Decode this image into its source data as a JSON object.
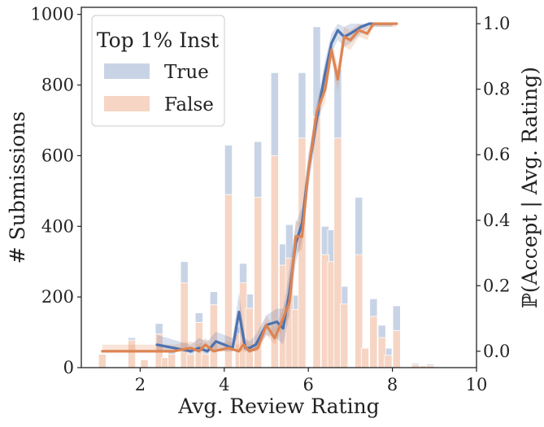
{
  "chart_data": {
    "type": "bar+line",
    "title": "",
    "xlabel": "Avg. Review Rating",
    "ylabel_left": "# Submissions",
    "ylabel_right": "ℙ(Accept | Avg. Rating)",
    "xlim": [
      0.6,
      10.0
    ],
    "ylim_left": [
      0,
      1020
    ],
    "ylim_right": [
      -0.05,
      1.05
    ],
    "x_ticks": [
      2,
      4,
      6,
      8,
      10
    ],
    "y_left_ticks": [
      0,
      200,
      400,
      600,
      800,
      1000
    ],
    "y_right_ticks": [
      0.0,
      0.2,
      0.4,
      0.6,
      0.8,
      1.0
    ],
    "x_tick_labels": [
      "2",
      "4",
      "6",
      "8",
      "10"
    ],
    "y_left_tick_labels": [
      "0",
      "200",
      "400",
      "600",
      "800",
      "1000"
    ],
    "y_right_tick_labels": [
      "0.0",
      "0.2",
      "0.4",
      "0.6",
      "0.8",
      "1.0"
    ],
    "legend": {
      "title": "Top 1% Inst",
      "placement": "top-left",
      "entries": [
        {
          "label": "True",
          "color": "#c8d4e6"
        },
        {
          "label": "False",
          "color": "#f6d5c4"
        }
      ]
    },
    "colors": {
      "true_bar": "#c8d4e6",
      "false_bar": "#f6d5c4",
      "true_line": "#4c72b0",
      "false_line": "#dd8452",
      "true_band": "#4c72b0",
      "false_band": "#dd8452"
    },
    "histogram": {
      "bin_width": 0.18,
      "bins": [
        {
          "x": 1.1,
          "total": 38,
          "false": 38
        },
        {
          "x": 1.8,
          "total": 85,
          "false": 78
        },
        {
          "x": 2.1,
          "total": 22,
          "false": 22
        },
        {
          "x": 2.45,
          "total": 125,
          "false": 95
        },
        {
          "x": 2.6,
          "total": 30,
          "false": 28
        },
        {
          "x": 2.75,
          "total": 45,
          "false": 38
        },
        {
          "x": 3.05,
          "total": 300,
          "false": 240
        },
        {
          "x": 3.2,
          "total": 45,
          "false": 38
        },
        {
          "x": 3.4,
          "total": 155,
          "false": 128
        },
        {
          "x": 3.55,
          "total": 52,
          "false": 38
        },
        {
          "x": 3.75,
          "total": 215,
          "false": 178
        },
        {
          "x": 4.1,
          "total": 630,
          "false": 490
        },
        {
          "x": 4.35,
          "total": 115,
          "false": 95
        },
        {
          "x": 4.45,
          "total": 295,
          "false": 240
        },
        {
          "x": 4.6,
          "total": 208,
          "false": 168
        },
        {
          "x": 4.8,
          "total": 640,
          "false": 482
        },
        {
          "x": 5.2,
          "total": 835,
          "false": 600
        },
        {
          "x": 5.4,
          "total": 350,
          "false": 290
        },
        {
          "x": 5.55,
          "total": 405,
          "false": 310
        },
        {
          "x": 5.7,
          "total": 205,
          "false": 165
        },
        {
          "x": 5.85,
          "total": 835,
          "false": 650
        },
        {
          "x": 6.2,
          "total": 965,
          "false": 710
        },
        {
          "x": 6.4,
          "total": 400,
          "false": 320
        },
        {
          "x": 6.55,
          "total": 390,
          "false": 300
        },
        {
          "x": 6.7,
          "total": 845,
          "false": 650
        },
        {
          "x": 6.85,
          "total": 230,
          "false": 180
        },
        {
          "x": 7.2,
          "total": 482,
          "false": 320
        },
        {
          "x": 7.35,
          "total": 55,
          "false": 55
        },
        {
          "x": 7.55,
          "total": 195,
          "false": 145
        },
        {
          "x": 7.75,
          "total": 120,
          "false": 85
        },
        {
          "x": 7.9,
          "total": 55,
          "false": 35
        },
        {
          "x": 8.1,
          "total": 175,
          "false": 105
        },
        {
          "x": 8.55,
          "total": 12,
          "false": 8
        },
        {
          "x": 8.75,
          "total": 7,
          "false": 5
        },
        {
          "x": 8.9,
          "total": 10,
          "false": 6
        }
      ]
    },
    "series": [
      {
        "name": "True",
        "x": [
          2.4,
          3.2,
          3.4,
          3.6,
          3.8,
          4.0,
          4.2,
          4.35,
          4.5,
          4.6,
          4.75,
          5.0,
          5.25,
          5.4,
          5.55,
          5.7,
          5.85,
          6.0,
          6.2,
          6.4,
          6.55,
          6.7,
          6.85,
          7.0,
          7.25,
          7.45,
          7.6,
          8.0
        ],
        "y": [
          0.02,
          0.0,
          0.01,
          0.0,
          0.03,
          0.02,
          0.01,
          0.12,
          0.01,
          0.01,
          0.02,
          0.08,
          0.09,
          0.07,
          0.18,
          0.33,
          0.39,
          0.55,
          0.71,
          0.85,
          0.94,
          0.98,
          0.96,
          0.97,
          0.99,
          1.0,
          1.0,
          1.0
        ],
        "ci_lower": [
          0.0,
          0.0,
          0.0,
          0.0,
          0.0,
          0.0,
          0.0,
          0.06,
          0.0,
          0.0,
          0.0,
          0.05,
          0.04,
          0.02,
          0.11,
          0.27,
          0.34,
          0.5,
          0.67,
          0.81,
          0.91,
          0.95,
          0.93,
          0.94,
          0.97,
          0.99,
          0.99,
          0.99
        ],
        "ci_upper": [
          0.05,
          0.02,
          0.04,
          0.03,
          0.06,
          0.05,
          0.04,
          0.18,
          0.04,
          0.03,
          0.05,
          0.11,
          0.13,
          0.13,
          0.25,
          0.39,
          0.44,
          0.6,
          0.75,
          0.89,
          0.97,
          1.0,
          0.99,
          1.0,
          1.0,
          1.0,
          1.0,
          1.0
        ]
      },
      {
        "name": "False",
        "x": [
          1.1,
          1.8,
          2.1,
          2.4,
          2.8,
          3.2,
          3.4,
          3.55,
          3.75,
          4.1,
          4.35,
          4.45,
          4.6,
          4.8,
          5.0,
          5.2,
          5.4,
          5.55,
          5.7,
          5.85,
          6.0,
          6.2,
          6.4,
          6.55,
          6.7,
          6.85,
          7.0,
          7.2,
          7.4,
          7.55,
          7.75,
          8.1
        ],
        "y": [
          0.0,
          0.0,
          0.0,
          0.0,
          0.0,
          0.01,
          0.0,
          0.02,
          0.0,
          0.01,
          0.0,
          0.02,
          0.0,
          0.01,
          0.08,
          0.04,
          0.1,
          0.15,
          0.35,
          0.35,
          0.55,
          0.73,
          0.8,
          0.92,
          0.83,
          0.96,
          0.95,
          0.98,
          0.97,
          1.0,
          1.0,
          1.0
        ],
        "ci_lower": [
          0.0,
          0.0,
          0.0,
          0.0,
          0.0,
          0.0,
          0.0,
          0.0,
          0.0,
          0.0,
          0.0,
          0.0,
          0.0,
          0.0,
          0.05,
          0.02,
          0.07,
          0.11,
          0.3,
          0.31,
          0.51,
          0.7,
          0.76,
          0.89,
          0.79,
          0.93,
          0.92,
          0.96,
          0.95,
          0.99,
          0.99,
          0.99
        ],
        "ci_upper": [
          0.02,
          0.02,
          0.02,
          0.02,
          0.02,
          0.03,
          0.02,
          0.04,
          0.02,
          0.03,
          0.02,
          0.04,
          0.02,
          0.03,
          0.11,
          0.07,
          0.13,
          0.19,
          0.4,
          0.39,
          0.59,
          0.76,
          0.84,
          0.95,
          0.87,
          0.99,
          0.98,
          1.0,
          0.99,
          1.0,
          1.0,
          1.0
        ]
      }
    ]
  }
}
